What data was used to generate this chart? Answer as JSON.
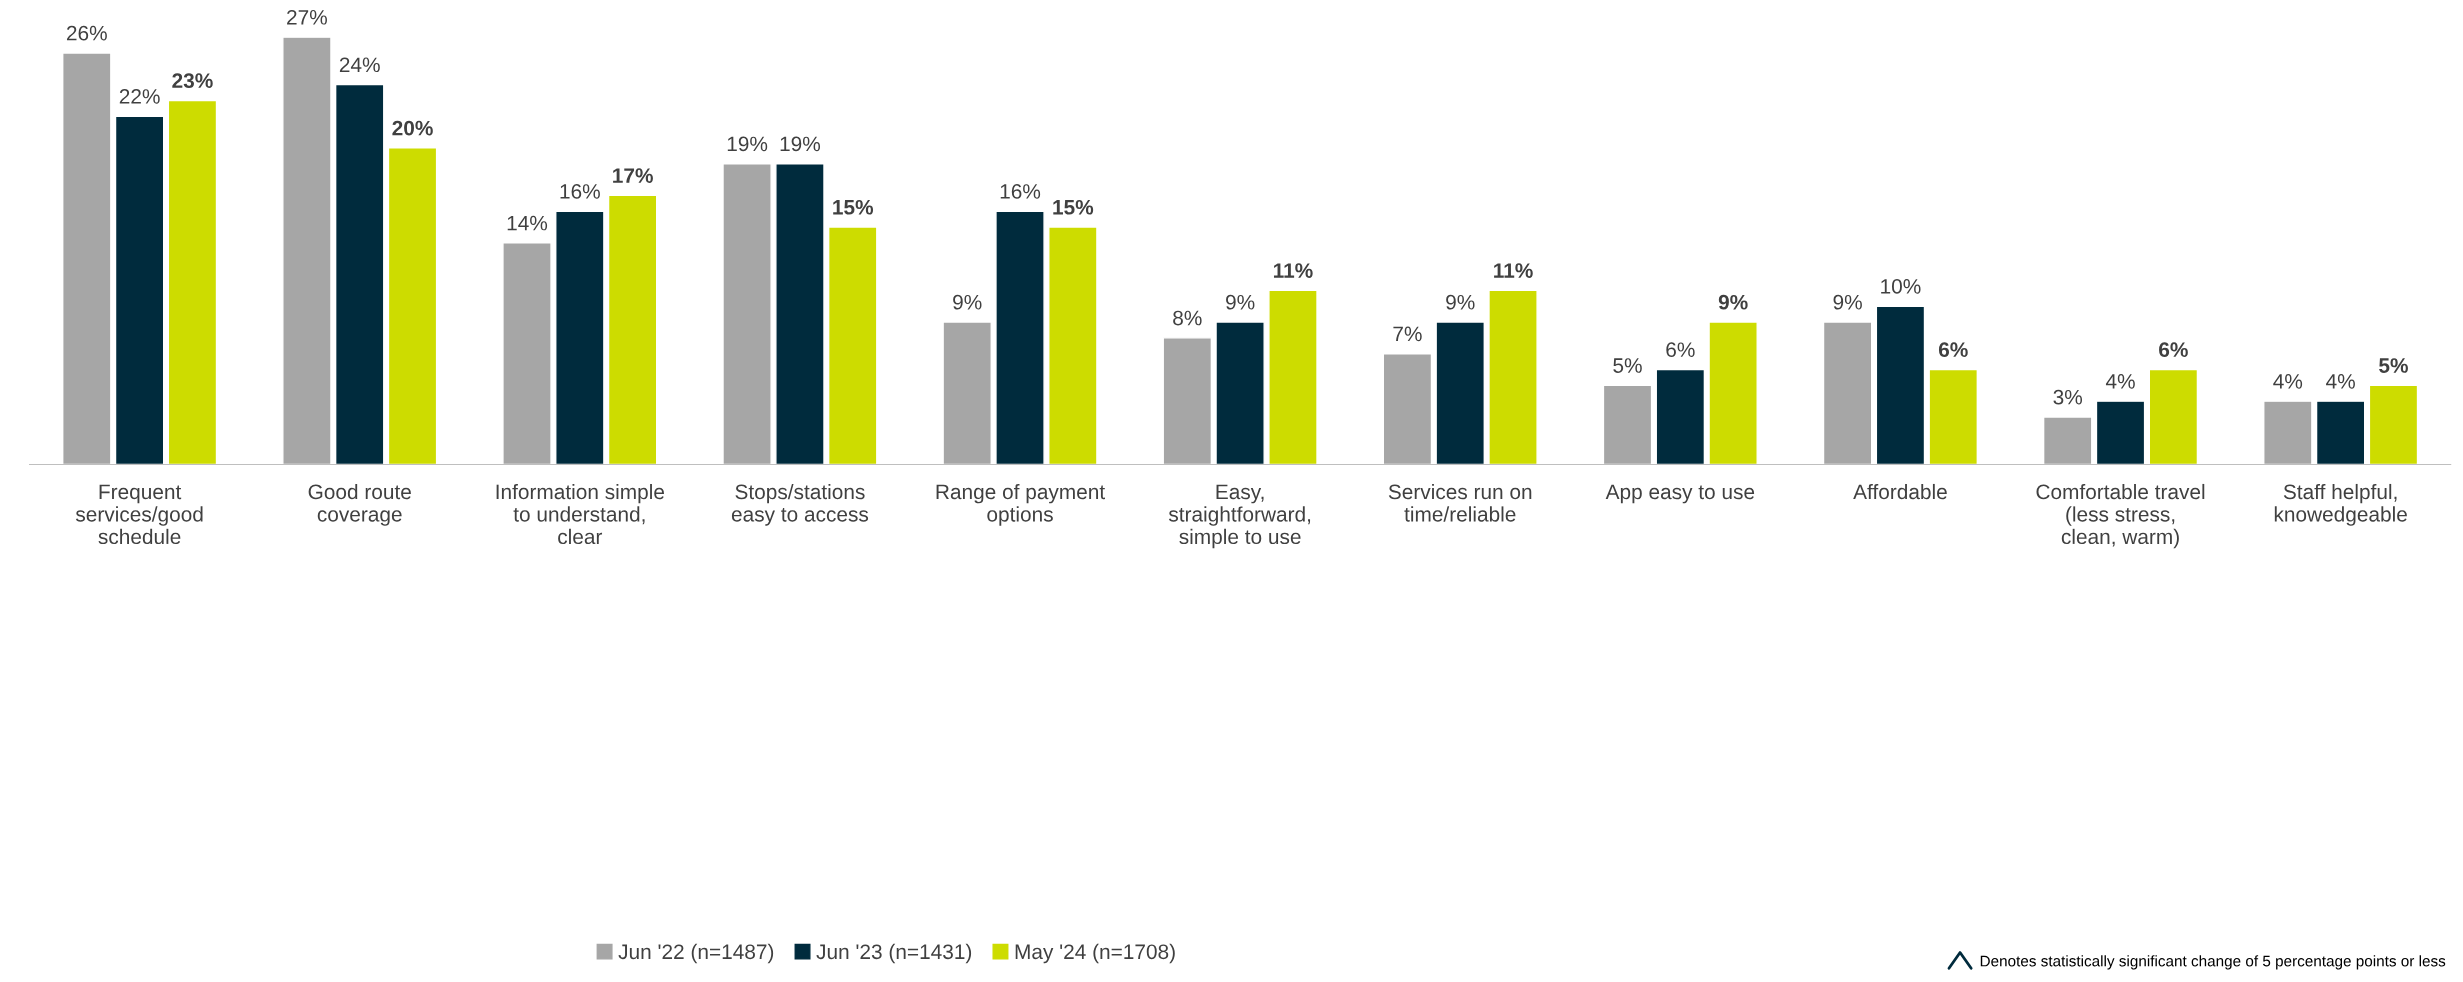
{
  "chart_data": {
    "type": "bar",
    "categories": [
      "Frequent\nservices/good\nschedule",
      "Good route\ncoverage",
      "Information simple\nto understand,\nclear",
      "Stops/stations\neasy to access",
      "Range of payment\noptions",
      "Easy,\nstraightforward,\nsimple to use",
      "Services run on\ntime/reliable",
      "App easy to use",
      "Affordable",
      "Comfortable travel\n(less stress,\nclean, warm)",
      "Staff helpful,\nknowedgeable"
    ],
    "series": [
      {
        "name": "Jun '22 (n=1487)",
        "color": "#a6a6a6",
        "values": [
          26,
          27,
          14,
          19,
          9,
          8,
          7,
          5,
          9,
          3,
          4
        ],
        "value_labels": [
          "26%",
          "27%",
          "14%",
          "19%",
          "9%",
          "8%",
          "7%",
          "5%",
          "9%",
          "3%",
          "4%"
        ]
      },
      {
        "name": "Jun '23 (n=1431)",
        "color": "#002b3d",
        "values": [
          22,
          24,
          16,
          19,
          16,
          9,
          9,
          6,
          10,
          4,
          4
        ],
        "value_labels": [
          "22%",
          "24%",
          "16%",
          "19%",
          "16%",
          "9%",
          "9%",
          "6%",
          "10%",
          "4%",
          "4%"
        ]
      },
      {
        "name": "May '24 (n=1708)",
        "color": "#cddc00",
        "values": [
          23,
          20,
          17,
          15,
          15,
          11,
          11,
          9,
          6,
          6,
          5
        ],
        "value_labels": [
          "23%",
          "20%",
          "17%",
          "15%",
          "15%",
          "11%",
          "11%",
          "9%",
          "6%",
          "6%",
          "5%"
        ]
      }
    ],
    "legend": "bottom",
    "grid": false,
    "annotations": [
      "Denotes statistically significant change of 5 percentage points or less"
    ]
  }
}
